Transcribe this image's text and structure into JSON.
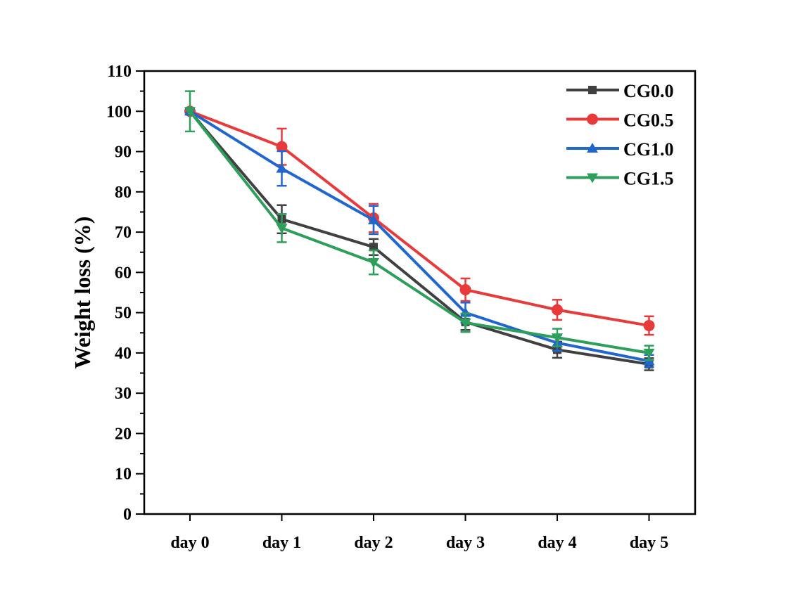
{
  "chart_data": {
    "type": "line",
    "title": "",
    "xlabel": "",
    "ylabel": "Weight loss (%)",
    "ylim": [
      0,
      110
    ],
    "yticks": [
      0,
      10,
      20,
      30,
      40,
      50,
      60,
      70,
      80,
      90,
      100,
      110
    ],
    "categories": [
      "day 0",
      "day 1",
      "day 2",
      "day 3",
      "day 4",
      "day 5"
    ],
    "grid": false,
    "legend_position": "top-right",
    "series": [
      {
        "name": "CG0.0",
        "color": "#404040",
        "marker": "square",
        "values": [
          100,
          73.2,
          66.3,
          47.7,
          40.8,
          37.2
        ],
        "errors": [
          0.5,
          3.5,
          2.0,
          2.0,
          2.0,
          1.5
        ]
      },
      {
        "name": "CG0.5",
        "color": "#e83a3a",
        "marker": "circle",
        "values": [
          100,
          91.2,
          73.5,
          55.7,
          50.7,
          46.8
        ],
        "errors": [
          0.5,
          4.5,
          3.5,
          2.8,
          2.5,
          2.3
        ]
      },
      {
        "name": "CG1.0",
        "color": "#1f66d1",
        "marker": "triangle-up",
        "values": [
          100,
          85.8,
          73.0,
          50.0,
          42.5,
          38.0
        ],
        "errors": [
          0.5,
          4.3,
          3.5,
          2.5,
          2.0,
          1.5
        ]
      },
      {
        "name": "CG1.5",
        "color": "#2e9e5b",
        "marker": "triangle-down",
        "values": [
          100,
          71.0,
          62.5,
          47.5,
          43.8,
          40.0
        ],
        "errors": [
          5.0,
          3.5,
          3.0,
          2.3,
          2.2,
          1.8
        ]
      }
    ]
  }
}
